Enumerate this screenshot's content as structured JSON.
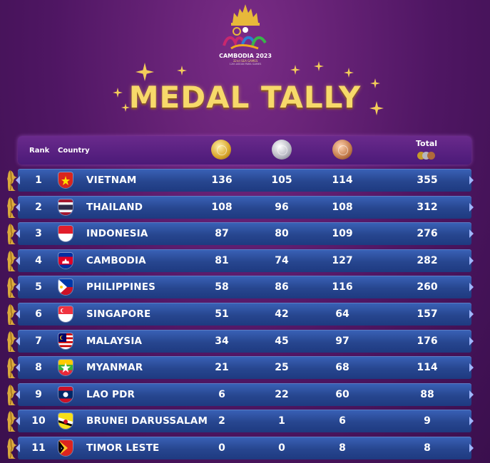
{
  "title": "MEDAL TALLY",
  "logo": {
    "line1": "CAMBODIA 2023",
    "line2": "32nd SEA GAMES",
    "line3": "12th ASEAN PARA GAMES"
  },
  "header": {
    "rank": "Rank",
    "country": "Country",
    "total": "Total",
    "gold_icon": "gold-medal-icon",
    "silver_icon": "silver-medal-icon",
    "bronze_icon": "bronze-medal-icon"
  },
  "colors": {
    "background": "#4f1663",
    "title_gold": "#f7d96a",
    "row_blue": "#27468f",
    "header_purple": "#5a2282"
  },
  "rows": [
    {
      "rank": "1",
      "country": "VIETNAM",
      "gold": "136",
      "silver": "105",
      "bronze": "114",
      "total": "355",
      "flag": "vietnam-flag-icon"
    },
    {
      "rank": "2",
      "country": "THAILAND",
      "gold": "108",
      "silver": "96",
      "bronze": "108",
      "total": "312",
      "flag": "thailand-flag-icon"
    },
    {
      "rank": "3",
      "country": "INDONESIA",
      "gold": "87",
      "silver": "80",
      "bronze": "109",
      "total": "276",
      "flag": "indonesia-flag-icon"
    },
    {
      "rank": "4",
      "country": "CAMBODIA",
      "gold": "81",
      "silver": "74",
      "bronze": "127",
      "total": "282",
      "flag": "cambodia-flag-icon"
    },
    {
      "rank": "5",
      "country": "PHILIPPINES",
      "gold": "58",
      "silver": "86",
      "bronze": "116",
      "total": "260",
      "flag": "philippines-flag-icon"
    },
    {
      "rank": "6",
      "country": "SINGAPORE",
      "gold": "51",
      "silver": "42",
      "bronze": "64",
      "total": "157",
      "flag": "singapore-flag-icon"
    },
    {
      "rank": "7",
      "country": "MALAYSIA",
      "gold": "34",
      "silver": "45",
      "bronze": "97",
      "total": "176",
      "flag": "malaysia-flag-icon"
    },
    {
      "rank": "8",
      "country": "MYANMAR",
      "gold": "21",
      "silver": "25",
      "bronze": "68",
      "total": "114",
      "flag": "myanmar-flag-icon"
    },
    {
      "rank": "9",
      "country": "LAO PDR",
      "gold": "6",
      "silver": "22",
      "bronze": "60",
      "total": "88",
      "flag": "laos-flag-icon"
    },
    {
      "rank": "10",
      "country": "BRUNEI DARUSSALAM",
      "gold": "2",
      "silver": "1",
      "bronze": "6",
      "total": "9",
      "flag": "brunei-flag-icon"
    },
    {
      "rank": "11",
      "country": "TIMOR LESTE",
      "gold": "0",
      "silver": "0",
      "bronze": "8",
      "total": "8",
      "flag": "timor-leste-flag-icon"
    }
  ]
}
